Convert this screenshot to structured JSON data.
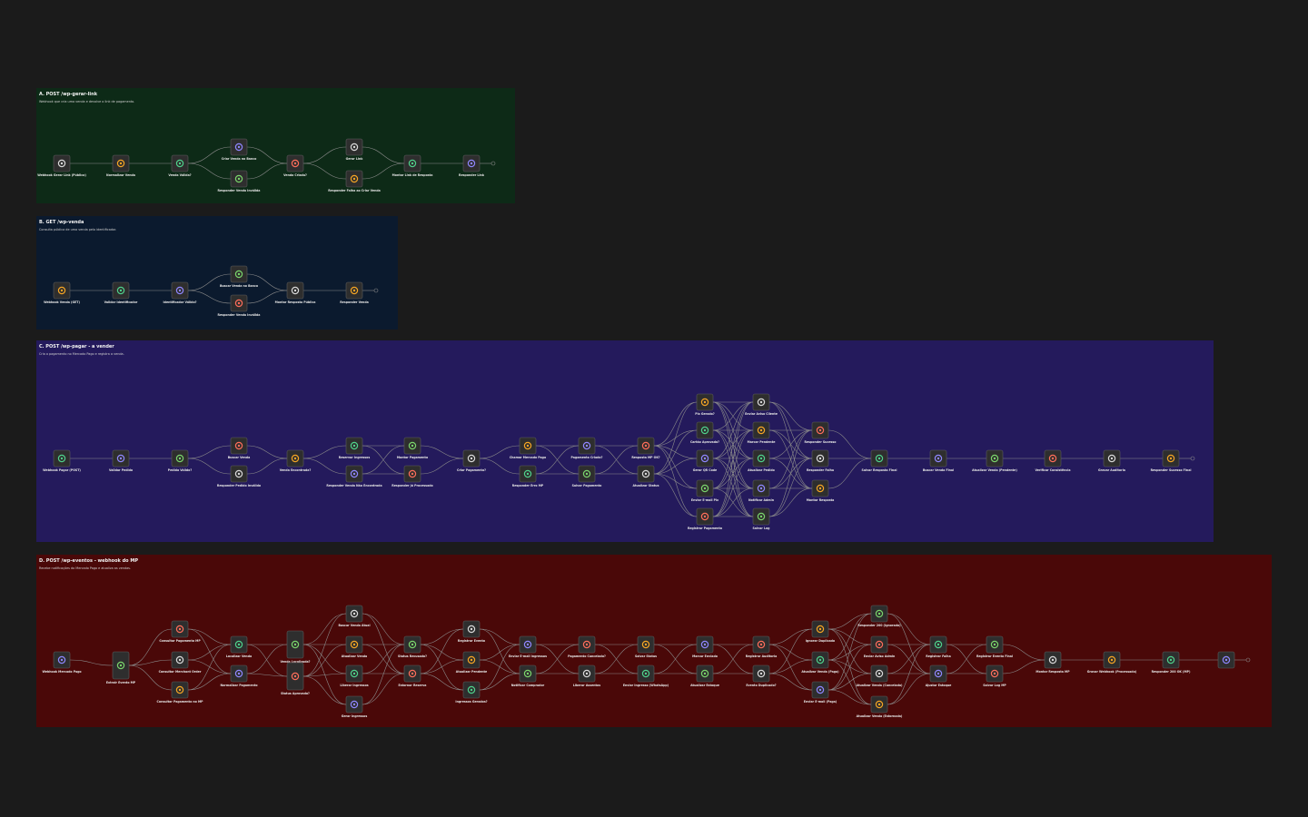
{
  "sections": [
    {
      "title": "A. POST /wp-gerar-link",
      "description": "Webhook que cria uma venda e devolve o link de pagamento.",
      "nodes": [
        "Webhook Gerar Link (Público)",
        "Normalizar Venda",
        "Venda Válida?",
        "Criar Venda no Banco",
        "Responder Venda Inválida",
        "Venda Criada?",
        "Gerar Link",
        "Responder Falha ao Criar Venda",
        "Montar Link de Resposta",
        "Responder Link"
      ]
    },
    {
      "title": "B. GET /wp-venda",
      "description": "Consulta pública de uma venda pelo identificador.",
      "nodes": [
        "Webhook Venda (GET)",
        "Validar Identificador",
        "Identificador Válido?",
        "Buscar Venda no Banco",
        "Responder Venda Inválida",
        "Montar Resposta Pública",
        "Responder Venda"
      ]
    },
    {
      "title": "C. POST /wp-pagar - a vender",
      "description": "Cria o pagamento no Mercado Pago e registra a venda.",
      "nodes": [
        "Webhook Pagar (POST)",
        "Validar Pedido",
        "Pedido Válido?",
        "Buscar Venda",
        "Responder Pedido Inválido",
        "Venda Encontrada?",
        "Reservar Ingressos",
        "Responder Venda Não Encontrada",
        "Montar Pagamento",
        "Responder Já Processado",
        "Criar Pagamento?",
        "Chamar Mercado Pago",
        "Responder Erro MP",
        "Pagamento Criado?",
        "Salvar Pagamento",
        "Resposta MP OK?",
        "Atualizar Status",
        "Pix Gerado?",
        "Cartão Aprovado?",
        "Gerar QR Code",
        "Enviar E-mail Pix",
        "Registrar Pagamento",
        "Enviar Aviso Cliente",
        "Marcar Pendente",
        "Atualizar Pedido",
        "Notificar Admin",
        "Salvar Log",
        "Responder Sucesso",
        "Responder Falha",
        "Montar Resposta",
        "Salvar Resposta Final",
        "Buscar Venda Final",
        "Atualizar Venda (Pendente)",
        "Verificar Consistência",
        "Gravar Auditoria",
        "Responder Sucesso Final"
      ]
    },
    {
      "title": "D. POST /wp-eventos - webhook do MP",
      "description": "Recebe notificações do Mercado Pago e atualiza as vendas.",
      "nodes": [
        "Webhook Mercado Pago",
        "Extrair Evento MP",
        "Consultar Pagamento MP",
        "Consultar Merchant Order",
        "Consultar Pagamento no MP",
        "Localizar Venda",
        "Normalizar Pagamento",
        "Venda Localizada?",
        "Status Aprovado?",
        "Buscar Venda Atual",
        "Atualizar Venda",
        "Liberar Ingressos",
        "Gerar Ingressos",
        "Status Recusado?",
        "Estornar Reserva",
        "Registrar Evento",
        "Atualizar Pendente",
        "Ingressos Gerados?",
        "Enviar E-mail Ingressos",
        "Notificar Comprador",
        "Pagamento Cancelado?",
        "Liberar Assentos",
        "Salvar Status",
        "Enviar Ingresso (WhatsApp)",
        "Marcar Enviado",
        "Atualizar Estoque",
        "Registrar Auditoria",
        "Evento Duplicado?",
        "Ignorar Duplicado",
        "Atualizar Venda (Paga)",
        "Enviar E-mail (Paga)",
        "Responder 200 (Ignorado)",
        "Enviar Aviso Admin",
        "Atualizar Venda (Cancelada)",
        "Atualizar Venda (Estornada)",
        "Registrar Falha",
        "Ajustar Estoque",
        "Registrar Evento Final",
        "Salvar Log MP",
        "Montar Resposta MP",
        "Gravar Webhook (Processado)",
        "Responder 200 OK (MP)"
      ]
    }
  ]
}
